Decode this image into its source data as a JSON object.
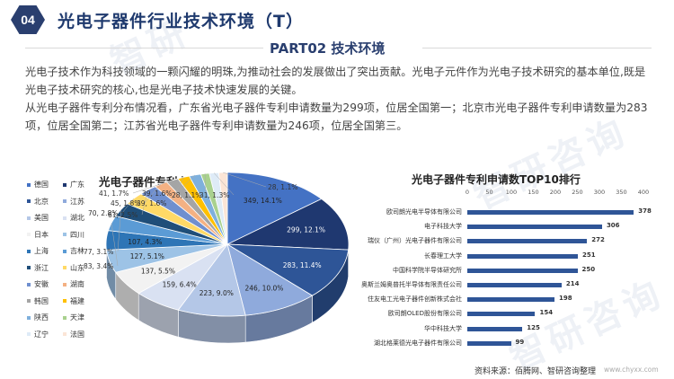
{
  "header": {
    "section_number": "04",
    "title": "光电子器件行业技术环境（T）",
    "part_label": "PART02  技术环境"
  },
  "intro": {
    "paragraph_1": "光电子技术作为科技领域的一颗闪耀的明珠,为推动社会的发展做出了突出贡献。光电子元件作为光电子技术研究的基本单位,既是光电子技术研究的核心,也是光电子技术快速发展的关键。",
    "paragraph_2": "从光电子器件专利分布情况看，广东省光电子器件专利申请数量为299项，位居全国第一；北京市光电子器件专利申请数量为283项，位居全国第二；江苏省光电子器件专利申请数量为246项，位居全国第三。"
  },
  "footer": {
    "source": "资料来源：佰腾网、智研咨询整理",
    "site": "www.chyxx.com"
  },
  "chart_data": [
    {
      "type": "pie",
      "title": "光电子器件专利主要分布情况",
      "legend_position": "left",
      "categories": [
        "德国",
        "广东",
        "北京",
        "江苏",
        "美国",
        "湖北",
        "日本",
        "四川",
        "上海",
        "吉林",
        "浙江",
        "山东",
        "安徽",
        "湖南",
        "韩国",
        "福建",
        "陕西",
        "天津",
        "辽宁",
        "法国"
      ],
      "values": [
        349,
        299,
        283,
        246,
        223,
        159,
        137,
        127,
        107,
        83,
        77,
        70,
        61,
        45,
        41,
        39,
        39,
        28,
        31,
        28
      ],
      "percentages": [
        "14.1%",
        "12.1%",
        "11.4%",
        "10.0%",
        "9.0%",
        "6.4%",
        "5.5%",
        "5.1%",
        "4.3%",
        "3.4%",
        "3.1%",
        "2.8%",
        "2.5%",
        "1.8%",
        "1.7%",
        "1.6%",
        "1.6%",
        "1.1%",
        "1.3%",
        "1.1%"
      ],
      "labels": [
        "349, 14.1%",
        "299, 12.1%",
        "283, 11.4%",
        "246, 10.0%",
        "223, 9.0%",
        "159, 6.4%",
        "137, 5.5%",
        "127, 5.1%",
        "107, 4.3%",
        "83, 3.4%",
        "77, 3.1%",
        "70, 2.8%",
        "61, 2.5%",
        "45, 1.8%",
        "41, 1.7%",
        "39, 1.6%",
        "39, 1.6%",
        "28, 1.1%",
        "31, 1.3%",
        "28, 1.1%"
      ],
      "colors": [
        "#4472c4",
        "#1f3870",
        "#2e5597",
        "#8faadc",
        "#b4c7e7",
        "#d9e1f2",
        "#f2f2f2",
        "#9dc3e6",
        "#2e75b6",
        "#5b9bd5",
        "#1f4e79",
        "#ffd966",
        "#6f8fcf",
        "#f4b183",
        "#a5a5a5",
        "#ffc000",
        "#7fb0dc",
        "#a9d18e",
        "#deebf7",
        "#fbe5d6"
      ]
    },
    {
      "type": "bar",
      "orientation": "horizontal",
      "title": "光电子器件专利申请数TOP10排行",
      "xlim": [
        0,
        400
      ],
      "xticks": [
        0,
        50,
        100,
        150,
        200,
        250,
        300,
        350,
        400
      ],
      "grid": false,
      "categories": [
        "欧司朗光电半导体有限公司",
        "电子科技大学",
        "瑞仪（广州）光电子器件有限公司",
        "长春理工大学",
        "中国科学院半导体研究所",
        "奥斯兰姆奥普托半导体有限责任公司",
        "住友电工光电子器件创新株式会社",
        "欧司朗OLED股份有限公司",
        "华中科技大学",
        "湖北格莱德光电子器件有限公司"
      ],
      "values": [
        378,
        306,
        272,
        251,
        250,
        214,
        198,
        154,
        125,
        99
      ],
      "bar_color": "#2f5597"
    }
  ]
}
